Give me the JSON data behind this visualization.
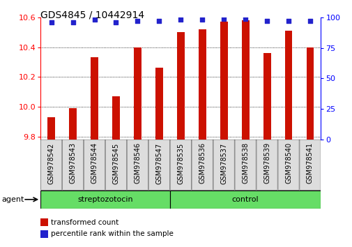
{
  "title": "GDS4845 / 10442914",
  "samples": [
    "GSM978542",
    "GSM978543",
    "GSM978544",
    "GSM978545",
    "GSM978546",
    "GSM978547",
    "GSM978535",
    "GSM978536",
    "GSM978537",
    "GSM978538",
    "GSM978539",
    "GSM978540",
    "GSM978541"
  ],
  "red_values": [
    9.93,
    9.99,
    10.33,
    10.07,
    10.4,
    10.26,
    10.5,
    10.52,
    10.57,
    10.58,
    10.36,
    10.51,
    10.4
  ],
  "blue_values": [
    96,
    96,
    98,
    96,
    97,
    97,
    98,
    98,
    99,
    99,
    97,
    97,
    97
  ],
  "group1_label": "streptozotocin",
  "group2_label": "control",
  "group1_count": 6,
  "group2_count": 7,
  "ymin": 9.78,
  "ymax": 10.6,
  "yticks": [
    9.8,
    10.0,
    10.2,
    10.4,
    10.6
  ],
  "y2min": 0,
  "y2max": 100,
  "y2ticks": [
    0,
    25,
    50,
    75,
    100
  ],
  "bar_color": "#CC1100",
  "dot_color": "#2222CC",
  "group_color": "#66DD66",
  "agent_label": "agent",
  "legend_red": "transformed count",
  "legend_blue": "percentile rank within the sample",
  "bar_width": 0.35
}
